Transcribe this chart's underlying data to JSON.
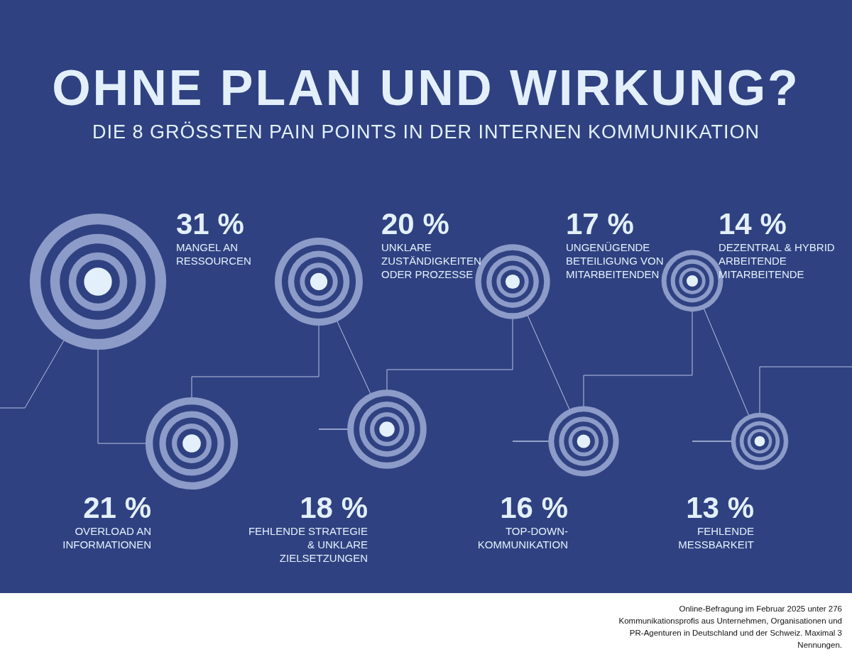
{
  "chart_data": {
    "type": "other",
    "title": "OHNE PLAN UND WIRKUNG?",
    "subtitle": "DIE 8 GRÖSSTEN PAIN POINTS IN DER INTERNEN KOMMUNIKATION",
    "categories": [
      "MANGEL AN\nRESSOURCEN",
      "OVERLOAD AN\nINFORMATIONEN",
      "UNKLARE\nZUSTÄNDIGKEITEN\nODER PROZESSE",
      "FEHLENDE STRATEGIE\n& UNKLARE\nZIELSETZUNGEN",
      "UNGENÜGENDE\nBETEILIGUNG VON\nMITARBEITENDEN",
      "TOP-DOWN-\nKOMMUNIKATION",
      "DEZENTRAL & HYBRID\nARBEITENDE\nMITARBEITENDE",
      "FEHLENDE\nMESSBARKEIT"
    ],
    "values": [
      31,
      21,
      20,
      18,
      17,
      16,
      14,
      13
    ],
    "value_labels": [
      "31 %",
      "21 %",
      "20 %",
      "18 %",
      "17 %",
      "16 %",
      "14 %",
      "13 %"
    ],
    "color": "#8d9bc9",
    "annotations": [
      "Online-Befragung im Februar 2025 unter 276 Kommunikationsprofis aus Unternehmen, Organisationen und PR-Agenturen in Deutschland und der Schweiz. Maximal 3 Nennungen."
    ]
  }
}
